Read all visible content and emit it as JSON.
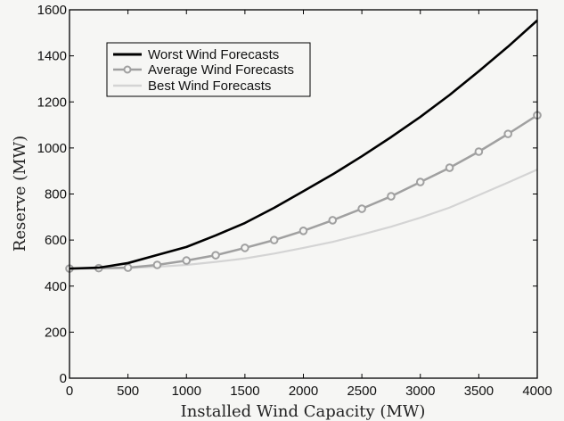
{
  "chart_data": {
    "type": "line",
    "title": "",
    "xlabel": "Installed Wind Capacity (MW)",
    "ylabel": "Reserve (MW)",
    "xlim": [
      0,
      4000
    ],
    "ylim": [
      0,
      1600
    ],
    "xticks": [
      0,
      500,
      1000,
      1500,
      2000,
      2500,
      3000,
      3500,
      4000
    ],
    "yticks": [
      0,
      200,
      400,
      600,
      800,
      1000,
      1200,
      1400,
      1600
    ],
    "grid": false,
    "legend_position": "top-left",
    "x": [
      0,
      250,
      500,
      750,
      1000,
      1250,
      1500,
      1750,
      2000,
      2250,
      2500,
      2750,
      3000,
      3250,
      3500,
      3750,
      4000
    ],
    "series": [
      {
        "name": "Worst Wind Forecasts",
        "color": "#000000",
        "marker": "none",
        "values": [
          476,
          480,
          500,
          535,
          570,
          620,
          674,
          740,
          812,
          885,
          964,
          1047,
          1135,
          1230,
          1333,
          1440,
          1554
        ]
      },
      {
        "name": "Average Wind Forecasts",
        "color": "#a0a0a0",
        "marker": "circle",
        "values": [
          476,
          478,
          480,
          492,
          511,
          534,
          566,
          600,
          640,
          686,
          736,
          790,
          852,
          914,
          984,
          1061,
          1142
        ]
      },
      {
        "name": "Best Wind Forecasts",
        "color": "#d4d4d4",
        "marker": "none",
        "values": [
          476,
          477,
          479,
          484,
          492,
          505,
          520,
          541,
          566,
          592,
          624,
          658,
          697,
          741,
          795,
          850,
          906
        ]
      }
    ]
  }
}
